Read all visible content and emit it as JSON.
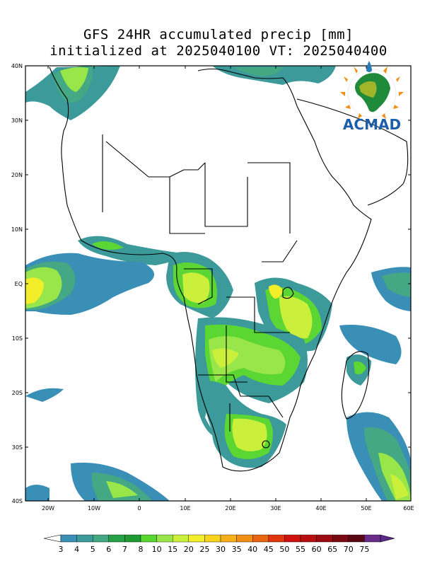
{
  "title": {
    "line1": "GFS 24HR accumulated precip [mm]",
    "line2": "initialized at 2025040100 VT: 2025040400"
  },
  "map": {
    "lat_labels": [
      "40N",
      "30N",
      "20N",
      "10N",
      "EQ",
      "10S",
      "20S",
      "30S",
      "40S"
    ],
    "lon_labels": [
      "20W",
      "10W",
      "0",
      "10E",
      "20E",
      "30E",
      "40E",
      "50E",
      "60E"
    ]
  },
  "logo": {
    "text": "ACMAD"
  },
  "colorbar": {
    "labels": [
      "3",
      "4",
      "5",
      "6",
      "7",
      "8",
      "10",
      "15",
      "20",
      "25",
      "30",
      "35",
      "40",
      "45",
      "50",
      "55",
      "60",
      "65",
      "70",
      "75"
    ],
    "colors": [
      "#3a8fb7",
      "#3c9a9a",
      "#43a883",
      "#26a046",
      "#1e9a32",
      "#5bd633",
      "#99e64a",
      "#cbf03c",
      "#f3ee2a",
      "#f7d21e",
      "#f5b019",
      "#f08f14",
      "#e86512",
      "#e0350e",
      "#d0120f",
      "#b70f10",
      "#9a0c11",
      "#7a0a12",
      "#5b0713",
      "#6a2c8a"
    ],
    "under_color": "#ffffff",
    "over_color": "#5a2a8a"
  }
}
